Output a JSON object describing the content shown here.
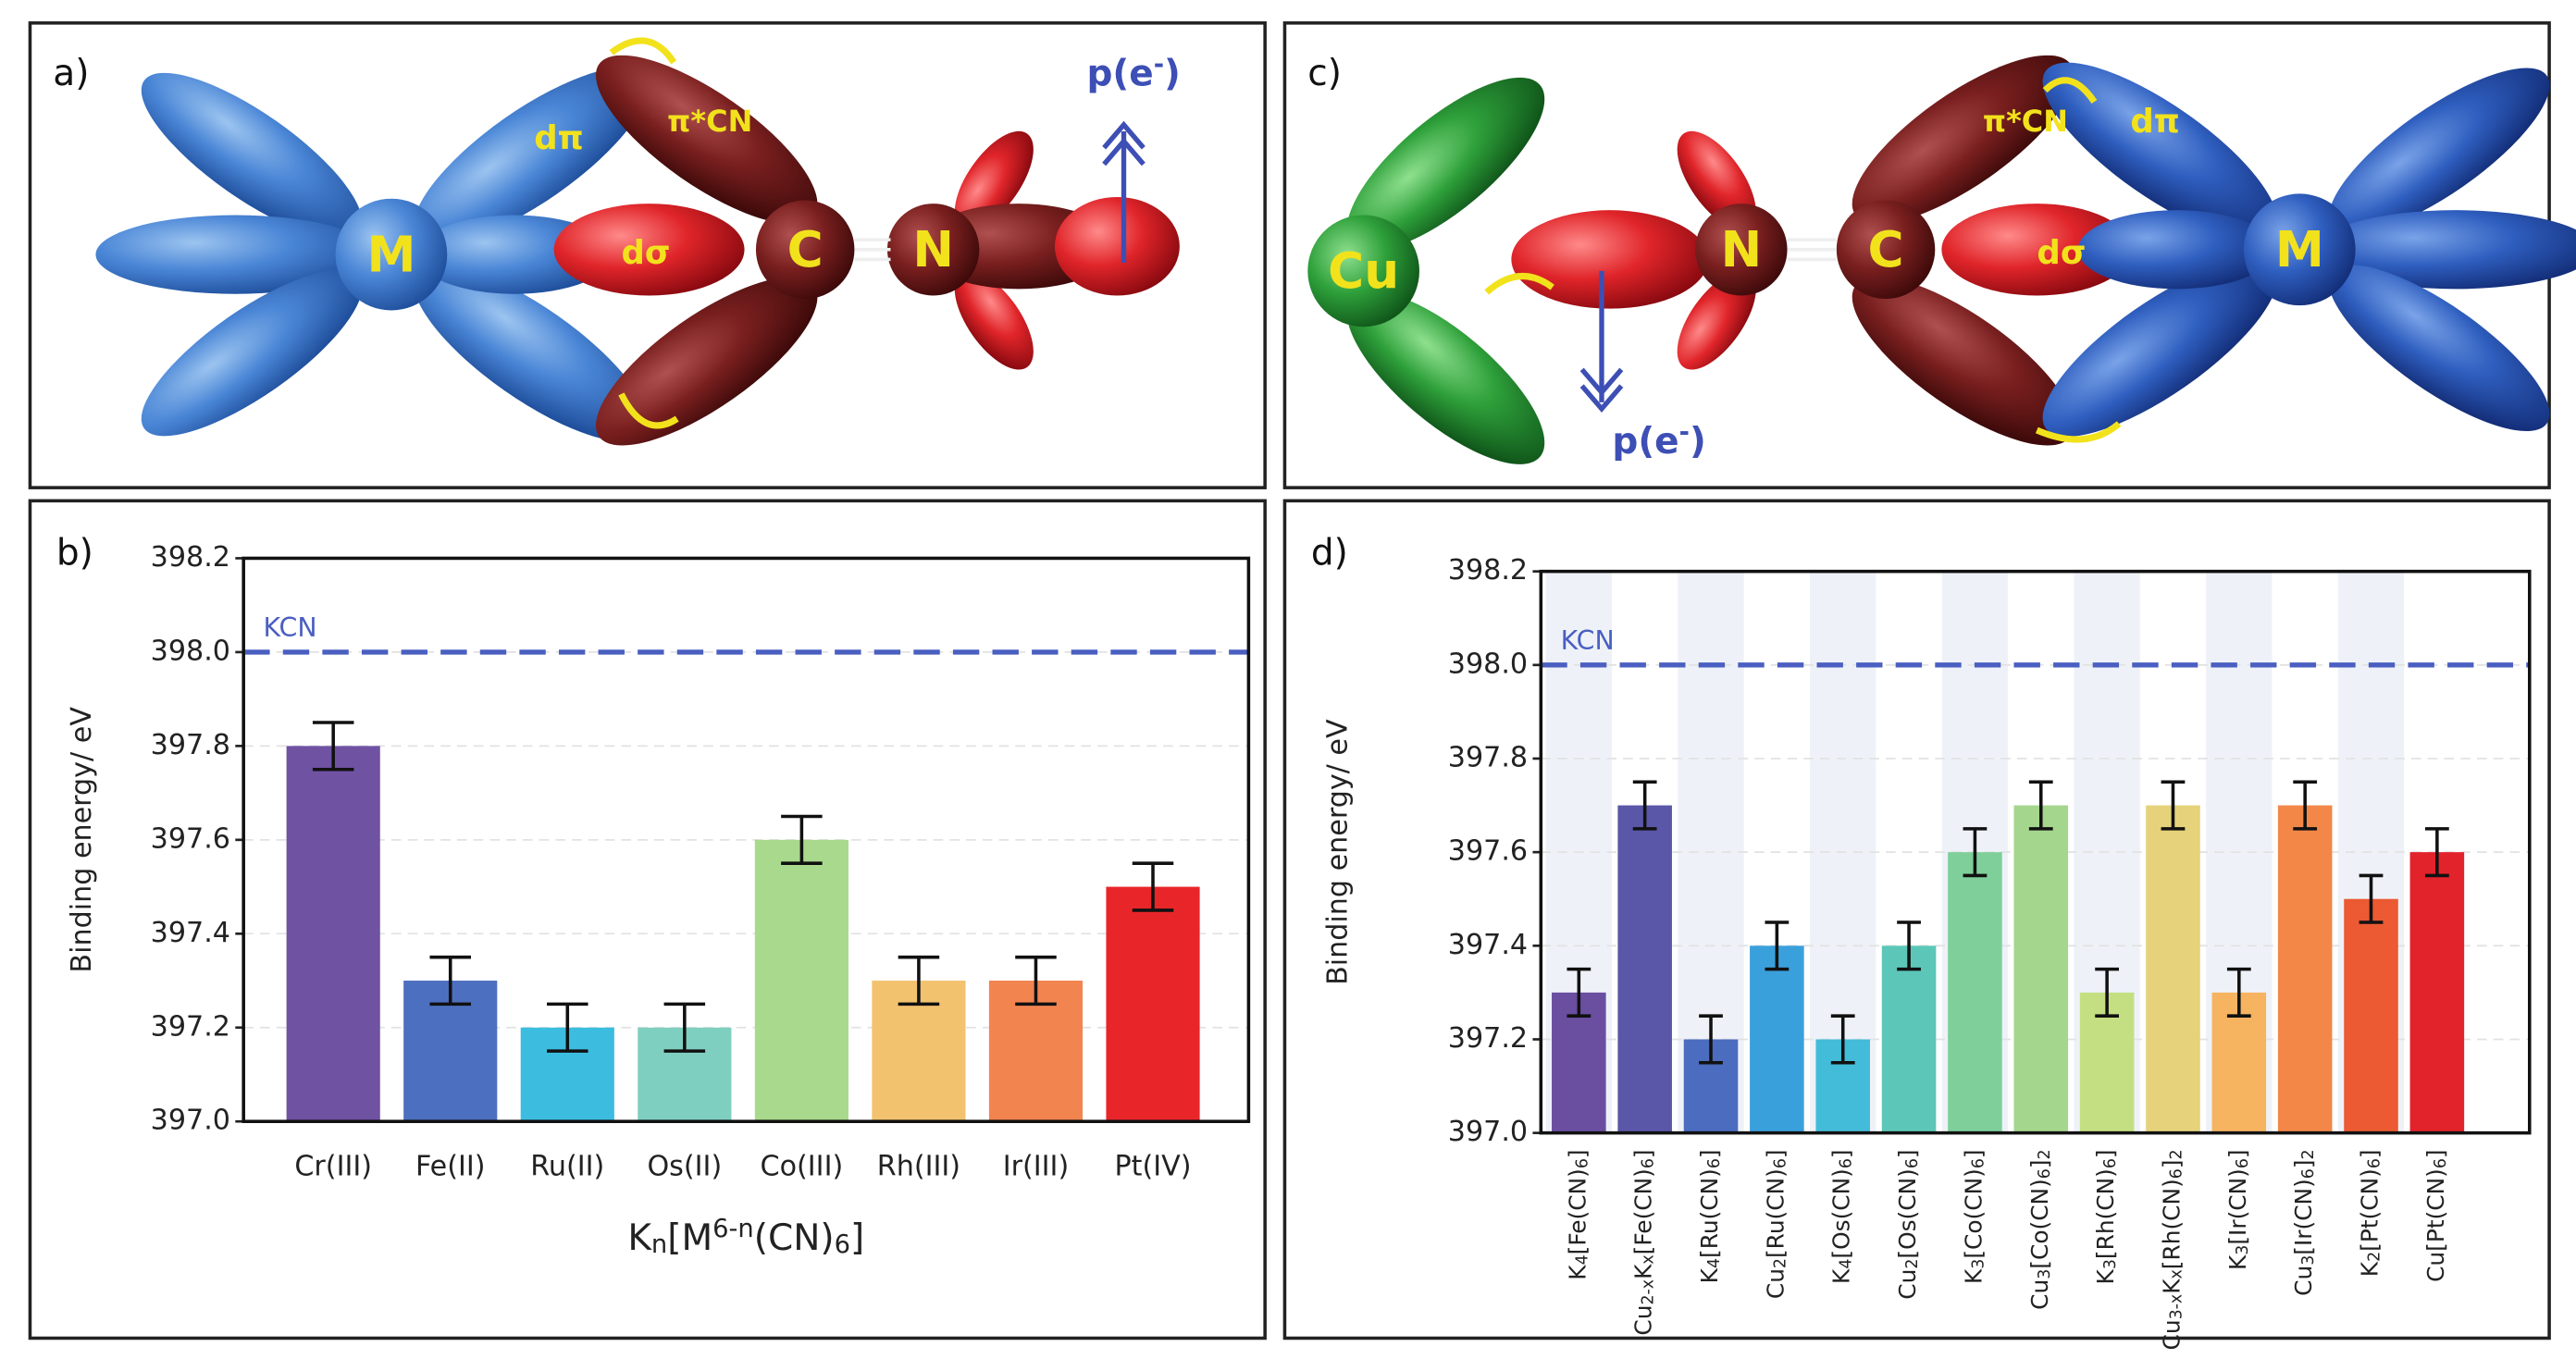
{
  "diagrams": [
    {
      "panel_label": "a)",
      "labels": {
        "metal": "M",
        "d_pi": "dπ",
        "pi_cn": "π*CN",
        "d_sigma": "dσ",
        "carbon": "C",
        "nitrogen": "N",
        "p_e": [
          {
            "text": "p(e"
          },
          {
            "text": "-",
            "pos": "sup"
          },
          {
            "text": ")"
          }
        ]
      }
    },
    {
      "panel_label": "c)",
      "labels": {
        "copper": "Cu",
        "nitrogen": "N",
        "carbon": "C",
        "d_sigma": "dσ",
        "pi_cn": "π*CN",
        "d_pi": "dπ",
        "metal": "M",
        "p_e": [
          {
            "text": "p(e"
          },
          {
            "text": "-",
            "pos": "sup"
          },
          {
            "text": ")"
          }
        ]
      }
    }
  ],
  "chart_data": [
    {
      "type": "bar",
      "panel_label": "b)",
      "ylabel": "Binding energy/ eV",
      "xlabel": [
        {
          "text": "K"
        },
        {
          "text": "n",
          "pos": "sub"
        },
        {
          "text": "[M"
        },
        {
          "text": "6-n",
          "pos": "sup"
        },
        {
          "text": "(CN)"
        },
        {
          "text": "6",
          "pos": "sub"
        },
        {
          "text": "]"
        }
      ],
      "categories": [
        "Cr(III)",
        "Fe(II)",
        "Ru(II)",
        "Os(II)",
        "Co(III)",
        "Rh(III)",
        "Ir(III)",
        "Pt(IV)"
      ],
      "values": [
        397.8,
        397.3,
        397.2,
        397.2,
        397.6,
        397.3,
        397.3,
        397.5
      ],
      "errors": [
        0.05,
        0.05,
        0.05,
        0.05,
        0.05,
        0.05,
        0.05,
        0.05
      ],
      "colors": [
        "#7052a3",
        "#4d6fbf",
        "#3cbde0",
        "#7fcfc0",
        "#a9d98c",
        "#f2c26e",
        "#f28450",
        "#e8262a"
      ],
      "ylim": [
        397.0,
        398.2
      ],
      "yticks": [
        {
          "value": 397,
          "label": "397.0"
        },
        397.2,
        397.4,
        397.6,
        397.8,
        {
          "value": 398,
          "label": "398.0"
        },
        398.2
      ],
      "grid": true,
      "reference": {
        "label": "KCN",
        "value": 398,
        "color": "#4a5fc1"
      }
    },
    {
      "type": "bar",
      "panel_label": "d)",
      "ylabel": "Binding energy/ eV",
      "categories": [
        [
          {
            "text": "K"
          },
          {
            "text": "4",
            "pos": "sub"
          },
          {
            "text": "[Fe(CN)"
          },
          {
            "text": "6",
            "pos": "sub"
          },
          {
            "text": "]"
          }
        ],
        [
          {
            "text": "Cu"
          },
          {
            "text": "2-x",
            "pos": "sub"
          },
          {
            "text": "K"
          },
          {
            "text": "x",
            "pos": "sub"
          },
          {
            "text": "[Fe(CN)"
          },
          {
            "text": "6",
            "pos": "sub"
          },
          {
            "text": "]"
          }
        ],
        [
          {
            "text": "K"
          },
          {
            "text": "4",
            "pos": "sub"
          },
          {
            "text": "[Ru(CN)"
          },
          {
            "text": "6",
            "pos": "sub"
          },
          {
            "text": "]"
          }
        ],
        [
          {
            "text": "Cu"
          },
          {
            "text": "2",
            "pos": "sub"
          },
          {
            "text": "[Ru(CN)"
          },
          {
            "text": "6",
            "pos": "sub"
          },
          {
            "text": "]"
          }
        ],
        [
          {
            "text": "K"
          },
          {
            "text": "4",
            "pos": "sub"
          },
          {
            "text": "[Os(CN)"
          },
          {
            "text": "6",
            "pos": "sub"
          },
          {
            "text": "]"
          }
        ],
        [
          {
            "text": "Cu"
          },
          {
            "text": "2",
            "pos": "sub"
          },
          {
            "text": "[Os(CN)"
          },
          {
            "text": "6",
            "pos": "sub"
          },
          {
            "text": "]"
          }
        ],
        [
          {
            "text": "K"
          },
          {
            "text": "3",
            "pos": "sub"
          },
          {
            "text": "[Co(CN)"
          },
          {
            "text": "6",
            "pos": "sub"
          },
          {
            "text": "]"
          }
        ],
        [
          {
            "text": "Cu"
          },
          {
            "text": "3",
            "pos": "sub"
          },
          {
            "text": "[Co(CN)"
          },
          {
            "text": "6",
            "pos": "sub"
          },
          {
            "text": "]"
          },
          {
            "text": "2",
            "pos": "sub"
          }
        ],
        [
          {
            "text": "K"
          },
          {
            "text": "3",
            "pos": "sub"
          },
          {
            "text": "[Rh(CN)"
          },
          {
            "text": "6",
            "pos": "sub"
          },
          {
            "text": "]"
          }
        ],
        [
          {
            "text": "Cu"
          },
          {
            "text": "3-x",
            "pos": "sub"
          },
          {
            "text": "K"
          },
          {
            "text": "x",
            "pos": "sub"
          },
          {
            "text": "[Rh(CN)"
          },
          {
            "text": "6",
            "pos": "sub"
          },
          {
            "text": "]"
          },
          {
            "text": "2",
            "pos": "sub"
          }
        ],
        [
          {
            "text": "K"
          },
          {
            "text": "3",
            "pos": "sub"
          },
          {
            "text": "[Ir(CN)"
          },
          {
            "text": "6",
            "pos": "sub"
          },
          {
            "text": "]"
          }
        ],
        [
          {
            "text": "Cu"
          },
          {
            "text": "3",
            "pos": "sub"
          },
          {
            "text": "[Ir(CN)"
          },
          {
            "text": "6",
            "pos": "sub"
          },
          {
            "text": "]"
          },
          {
            "text": "2",
            "pos": "sub"
          }
        ],
        [
          {
            "text": "K"
          },
          {
            "text": "2",
            "pos": "sub"
          },
          {
            "text": "[Pt(CN)"
          },
          {
            "text": "6",
            "pos": "sub"
          },
          {
            "text": "]"
          }
        ],
        [
          {
            "text": "Cu"
          },
          {
            "text": "[Pt(CN)"
          },
          {
            "text": "6",
            "pos": "sub"
          },
          {
            "text": "]"
          }
        ]
      ],
      "values": [
        397.3,
        397.7,
        397.2,
        397.4,
        397.2,
        397.4,
        397.6,
        397.7,
        397.3,
        397.7,
        397.3,
        397.7,
        397.5,
        397.6
      ],
      "errors": [
        0.05,
        0.05,
        0.05,
        0.05,
        0.05,
        0.05,
        0.05,
        0.05,
        0.05,
        0.05,
        0.05,
        0.05,
        0.05,
        0.05
      ],
      "colors": [
        "#6a4ea0",
        "#5a57a8",
        "#4b6cbf",
        "#3aa0dc",
        "#42bcd8",
        "#5cc7b8",
        "#7fcf9b",
        "#a5d68d",
        "#c4df82",
        "#e6d27a",
        "#f6b461",
        "#f28748",
        "#eb5a33",
        "#e3232b"
      ],
      "ylim": [
        397.0,
        398.2
      ],
      "yticks": [
        {
          "value": 397,
          "label": "397.0"
        },
        397.2,
        397.4,
        397.6,
        397.8,
        {
          "value": 398,
          "label": "398.0"
        },
        398.2
      ],
      "grid": true,
      "band_shading": true,
      "reference": {
        "label": "KCN",
        "value": 398,
        "color": "#4a5fc1"
      }
    }
  ]
}
